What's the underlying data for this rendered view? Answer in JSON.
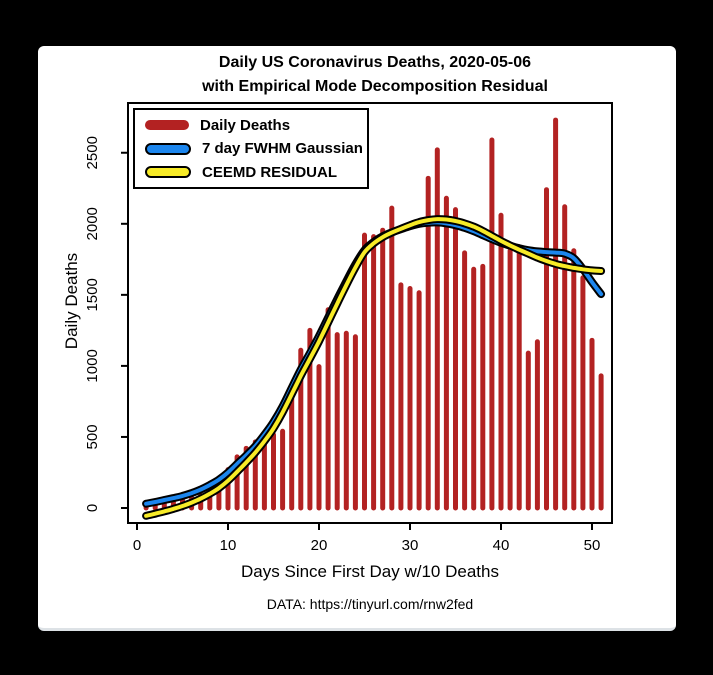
{
  "frame": {
    "background": "#000000",
    "card_background": "#ffffff",
    "card_edge": "#dde2e6"
  },
  "title": {
    "line1": "Daily US Coronavirus Deaths, 2020-05-06",
    "line2": "with Empirical Mode Decomposition Residual"
  },
  "legend": {
    "items": [
      {
        "label": "Daily Deaths",
        "color": "#b32222",
        "outlined": false
      },
      {
        "label": "7 day FWHM Gaussian",
        "color": "#1c86ee",
        "outlined": true
      },
      {
        "label": "CEEMD RESIDUAL",
        "color": "#f7eb27",
        "outlined": true
      }
    ]
  },
  "footer": {
    "source": "DATA: https://tinyurl.com/rnw2fed"
  },
  "chart_data": {
    "type": "bar",
    "title": "Daily US Coronavirus Deaths, 2020-05-06 with Empirical Mode Decomposition Residual",
    "xlabel": "Days Since First Day w/10 Deaths",
    "ylabel": "Daily Deaths",
    "xticks": [
      0,
      10,
      20,
      30,
      40,
      50
    ],
    "yticks": [
      0,
      500,
      1000,
      1500,
      2000,
      2500
    ],
    "xlim": [
      -1,
      52
    ],
    "ylim": [
      -60,
      2790
    ],
    "grid": false,
    "legend_position": "top-left",
    "x": [
      1,
      2,
      3,
      4,
      5,
      6,
      7,
      8,
      9,
      10,
      11,
      12,
      13,
      14,
      15,
      16,
      17,
      18,
      19,
      20,
      21,
      22,
      23,
      24,
      25,
      26,
      27,
      28,
      29,
      30,
      31,
      32,
      33,
      34,
      35,
      36,
      37,
      38,
      39,
      40,
      41,
      42,
      43,
      44,
      45,
      46,
      47,
      48,
      49,
      50,
      51
    ],
    "series": [
      {
        "name": "Daily Deaths",
        "type": "bar",
        "color": "#b32222",
        "values": [
          15,
          20,
          30,
          40,
          55,
          70,
          90,
          115,
          175,
          270,
          360,
          420,
          465,
          465,
          515,
          540,
          830,
          1110,
          1250,
          995,
          1395,
          1220,
          1230,
          1205,
          1920,
          1910,
          1955,
          2110,
          1570,
          1545,
          1515,
          2320,
          2520,
          2180,
          2100,
          1795,
          1680,
          1700,
          2590,
          2060,
          1810,
          1790,
          1090,
          1170,
          2240,
          2730,
          2120,
          1810,
          1620,
          1180,
          930
        ]
      },
      {
        "name": "7 day FWHM Gaussian",
        "type": "line",
        "color": "#1c86ee",
        "outline": "#000000",
        "values": [
          30,
          42,
          56,
          70,
          85,
          105,
          130,
          162,
          200,
          250,
          310,
          370,
          435,
          515,
          605,
          715,
          845,
          975,
          1090,
          1210,
          1340,
          1470,
          1595,
          1715,
          1815,
          1872,
          1912,
          1940,
          1962,
          1983,
          2000,
          2008,
          2010,
          2003,
          1990,
          1972,
          1948,
          1920,
          1892,
          1866,
          1846,
          1828,
          1814,
          1806,
          1801,
          1797,
          1790,
          1758,
          1682,
          1590,
          1505
        ]
      },
      {
        "name": "CEEMD RESIDUAL",
        "type": "line",
        "color": "#f7eb27",
        "outline": "#000000",
        "values": [
          -55,
          -40,
          -24,
          -6,
          14,
          38,
          66,
          100,
          140,
          192,
          255,
          320,
          390,
          470,
          560,
          672,
          800,
          930,
          1050,
          1172,
          1305,
          1438,
          1568,
          1692,
          1800,
          1862,
          1906,
          1938,
          1965,
          1990,
          2012,
          2026,
          2033,
          2030,
          2020,
          2003,
          1980,
          1950,
          1915,
          1880,
          1848,
          1818,
          1790,
          1762,
          1738,
          1718,
          1702,
          1690,
          1680,
          1672,
          1668
        ]
      }
    ]
  }
}
